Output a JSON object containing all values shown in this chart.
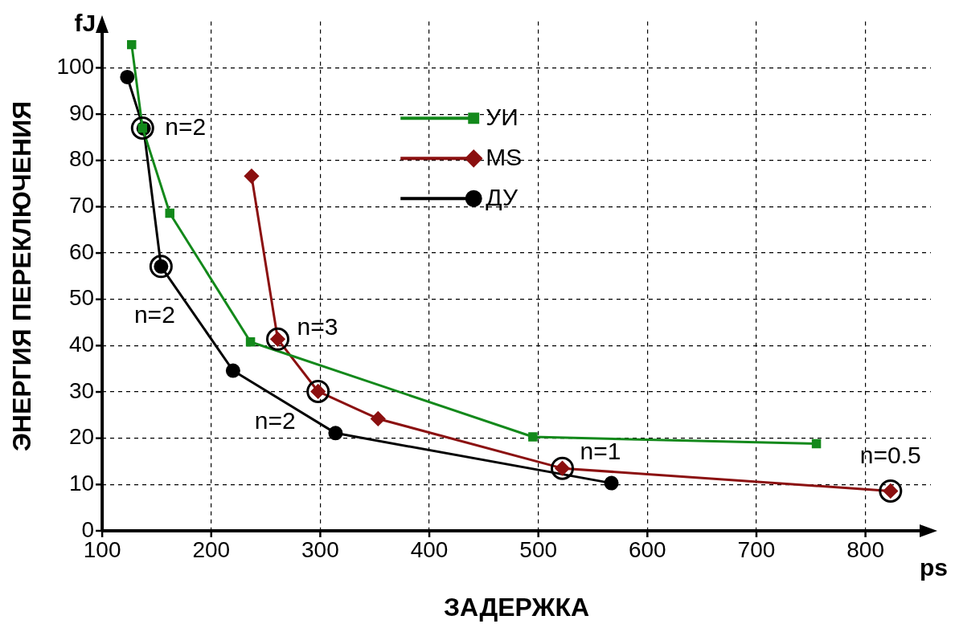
{
  "chart_data": {
    "type": "line",
    "xlabel": "ЗАДЕРЖКА",
    "ylabel": "ЭНЕРГИЯ ПЕРЕКЛЮЧЕНИЯ",
    "xlim": [
      100,
      860
    ],
    "xticks": [
      100,
      200,
      300,
      400,
      500,
      600,
      700,
      800
    ],
    "ylim": [
      0,
      110
    ],
    "yticks": [
      0,
      10,
      20,
      30,
      40,
      50,
      60,
      70,
      80,
      90,
      100
    ],
    "grid": true,
    "legend": "top",
    "line_style": "solid",
    "series": [
      {
        "name": "УИ",
        "color": "#13891b",
        "marker": "square",
        "x": [
          127,
          137,
          162,
          236,
          495,
          755
        ],
        "values": [
          105,
          87,
          68.6,
          40.8,
          20.3,
          18.8
        ]
      },
      {
        "name": "MS",
        "color": "#8b1010",
        "marker": "diamond",
        "x": [
          237,
          261,
          298,
          353,
          522,
          823
        ],
        "values": [
          76.6,
          41.4,
          30.1,
          24.2,
          13.5,
          8.6
        ]
      },
      {
        "name": "ДУ",
        "color": "#000000",
        "marker": "circle",
        "x": [
          123,
          138,
          154,
          220,
          314,
          567
        ],
        "values": [
          98,
          86.9,
          57.1,
          34.6,
          21.1,
          10.3
        ]
      }
    ],
    "annotations": [
      {
        "text": "n=2",
        "x": 137,
        "y": 87
      },
      {
        "text": "n=2",
        "x": 154,
        "y": 57.1
      },
      {
        "text": "n=3",
        "x": 261,
        "y": 41.4
      },
      {
        "text": "n=2",
        "x": 298,
        "y": 30.1
      },
      {
        "text": "n=1",
        "x": 522,
        "y": 13.5
      },
      {
        "text": "n=0.5",
        "x": 823,
        "y": 8.6
      },
      "fJ",
      "ps"
    ]
  }
}
